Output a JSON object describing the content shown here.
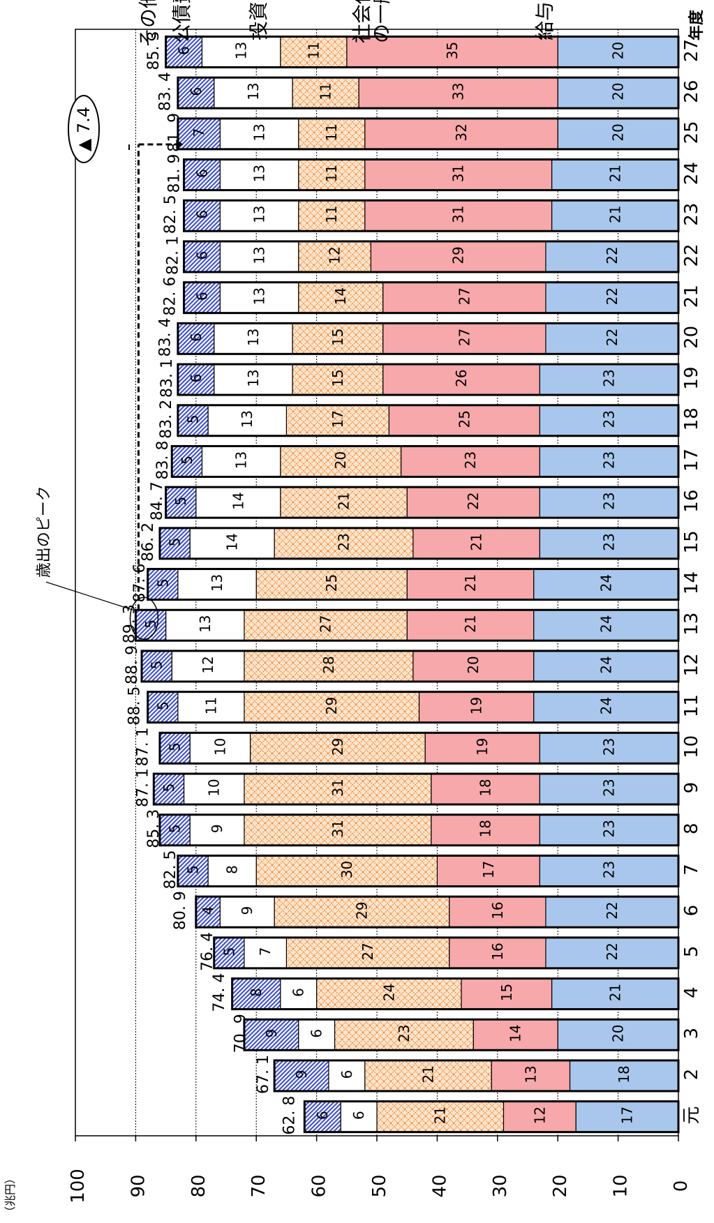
{
  "chart_data": {
    "type": "bar",
    "stacked": true,
    "orientation": "horizontal",
    "ylabel": "（兆円）",
    "xlabel": "年度",
    "ylim": [
      0,
      100
    ],
    "y_ticks": [
      "0",
      "10",
      "20",
      "30",
      "40",
      "50",
      "60",
      "70",
      "80",
      "90",
      "100"
    ],
    "categories": [
      "元",
      "2",
      "3",
      "4",
      "5",
      "6",
      "7",
      "8",
      "9",
      "10",
      "11",
      "12",
      "13",
      "14",
      "15",
      "16",
      "17",
      "18",
      "19",
      "20",
      "21",
      "22",
      "23",
      "24",
      "25",
      "26",
      "27"
    ],
    "series": [
      {
        "name": "給与",
        "color": "#a9c7ec",
        "values": [
          17,
          18,
          20,
          21,
          22,
          22,
          23,
          23,
          23,
          23,
          24,
          24,
          24,
          24,
          23,
          23,
          23,
          23,
          23,
          22,
          22,
          22,
          21,
          21,
          20,
          20,
          20
        ]
      },
      {
        "name": "社会保障等の一般行政経費",
        "color": "#f7a8aa",
        "values": [
          12,
          13,
          14,
          15,
          16,
          16,
          17,
          18,
          18,
          19,
          19,
          20,
          21,
          21,
          21,
          22,
          23,
          25,
          26,
          27,
          27,
          29,
          31,
          31,
          32,
          33,
          35
        ]
      },
      {
        "name": "投資的経費",
        "color": "#fde5cc",
        "values": [
          21,
          21,
          23,
          24,
          27,
          29,
          30,
          31,
          31,
          29,
          29,
          28,
          27,
          25,
          23,
          21,
          20,
          17,
          15,
          15,
          14,
          12,
          11,
          11,
          11,
          11,
          11
        ]
      },
      {
        "name": "公債費",
        "color": "#ffffff",
        "values": [
          6,
          6,
          6,
          6,
          7,
          9,
          8,
          9,
          10,
          10,
          11,
          12,
          13,
          13,
          14,
          14,
          13,
          13,
          13,
          13,
          13,
          13,
          13,
          13,
          13,
          13,
          13
        ]
      },
      {
        "name": "その他",
        "color": "#5968c8",
        "values": [
          6,
          9,
          9,
          8,
          5,
          4,
          5,
          5,
          5,
          5,
          5,
          5,
          5,
          5,
          5,
          5,
          5,
          5,
          6,
          6,
          6,
          6,
          6,
          6,
          7,
          6,
          6
        ]
      }
    ],
    "totals": [
      "62. 8",
      "67. 1",
      "70. 9",
      "74. 4",
      "76. 4",
      "80. 9",
      "82. 5",
      "85. 3",
      "87. 1",
      "87. 1",
      "88. 5",
      "88. 9",
      "89. 3",
      "87. 6",
      "86. 2",
      "84. 7",
      "83. 8",
      "83. 2",
      "83. 1",
      "83. 4",
      "82. 6",
      "82. 1",
      "82. 5",
      "81. 9",
      "81. 9",
      "83. 4",
      "85. 3"
    ],
    "total_values": [
      62.8,
      67.1,
      70.9,
      74.4,
      76.4,
      80.9,
      82.5,
      85.3,
      87.1,
      87.1,
      88.5,
      88.9,
      89.3,
      87.6,
      86.2,
      84.7,
      83.8,
      83.2,
      83.1,
      83.4,
      82.6,
      82.1,
      82.5,
      81.9,
      81.9,
      83.4,
      85.3
    ],
    "peak_label": "歳出のピーク",
    "peak_index": 12,
    "reference_value": 89.3,
    "reduction_label": "▲ 7.4",
    "series_labels_visible": [
      "給与",
      "社会保障等\nの一般行政経費",
      "投資的経費",
      "公債費",
      "その他"
    ]
  }
}
